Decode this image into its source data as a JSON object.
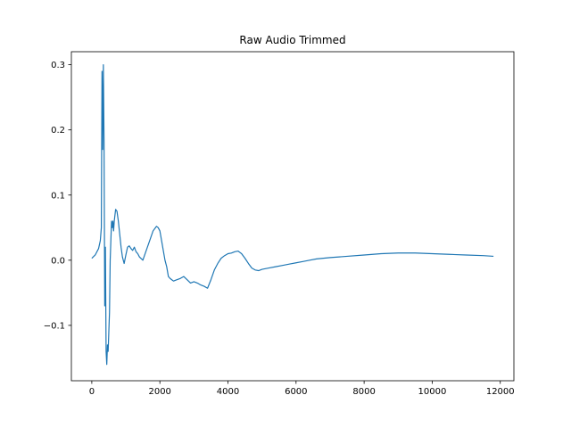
{
  "chart_data": {
    "type": "line",
    "title": "Raw Audio Trimmed",
    "xlabel": "",
    "ylabel": "",
    "xlim": [
      -600,
      12400
    ],
    "ylim": [
      -0.185,
      0.32
    ],
    "xticks": [
      0,
      2000,
      4000,
      6000,
      8000,
      10000,
      12000
    ],
    "xtick_labels": [
      "0",
      "2000",
      "4000",
      "6000",
      "8000",
      "10000",
      "12000"
    ],
    "yticks": [
      -0.1,
      0.0,
      0.1,
      0.2,
      0.3
    ],
    "ytick_labels": [
      "−0.1",
      "0.0",
      "0.1",
      "0.2",
      "0.3"
    ],
    "grid": false,
    "series": [
      {
        "color": "#1f77b4",
        "x": [
          0,
          100,
          200,
          250,
          280,
          300,
          320,
          340,
          360,
          380,
          400,
          420,
          440,
          460,
          480,
          500,
          520,
          540,
          560,
          580,
          600,
          620,
          640,
          660,
          700,
          740,
          780,
          820,
          860,
          900,
          950,
          1000,
          1050,
          1100,
          1150,
          1200,
          1250,
          1300,
          1350,
          1400,
          1500,
          1600,
          1700,
          1800,
          1900,
          1950,
          2000,
          2050,
          2100,
          2150,
          2200,
          2250,
          2300,
          2350,
          2400,
          2500,
          2600,
          2700,
          2800,
          2900,
          3000,
          3100,
          3200,
          3300,
          3400,
          3500,
          3600,
          3700,
          3800,
          3900,
          4000,
          4100,
          4200,
          4300,
          4350,
          4400,
          4500,
          4600,
          4700,
          4800,
          4900,
          5000,
          5200,
          5400,
          5600,
          5800,
          6000,
          6200,
          6400,
          6600,
          6800,
          7000,
          7500,
          8000,
          8500,
          9000,
          9500,
          10000,
          10500,
          11000,
          11500,
          11800
        ],
        "y": [
          0.003,
          0.008,
          0.018,
          0.03,
          0.05,
          0.29,
          0.17,
          0.3,
          0.18,
          -0.07,
          0.02,
          -0.14,
          -0.16,
          -0.13,
          -0.14,
          -0.11,
          -0.08,
          0.0,
          0.03,
          0.06,
          0.05,
          0.06,
          0.045,
          0.06,
          0.078,
          0.075,
          0.06,
          0.04,
          0.02,
          0.005,
          -0.005,
          0.008,
          0.02,
          0.022,
          0.018,
          0.015,
          0.02,
          0.013,
          0.01,
          0.005,
          0.0,
          0.015,
          0.03,
          0.045,
          0.052,
          0.05,
          0.045,
          0.03,
          0.015,
          0.0,
          -0.01,
          -0.025,
          -0.028,
          -0.03,
          -0.032,
          -0.03,
          -0.028,
          -0.025,
          -0.03,
          -0.035,
          -0.033,
          -0.035,
          -0.038,
          -0.04,
          -0.043,
          -0.03,
          -0.015,
          -0.005,
          0.003,
          0.007,
          0.01,
          0.011,
          0.013,
          0.014,
          0.012,
          0.01,
          0.003,
          -0.005,
          -0.012,
          -0.015,
          -0.016,
          -0.014,
          -0.012,
          -0.01,
          -0.008,
          -0.006,
          -0.004,
          -0.002,
          0.0,
          0.002,
          0.003,
          0.004,
          0.006,
          0.008,
          0.01,
          0.011,
          0.011,
          0.01,
          0.009,
          0.008,
          0.007,
          0.006
        ]
      }
    ]
  }
}
